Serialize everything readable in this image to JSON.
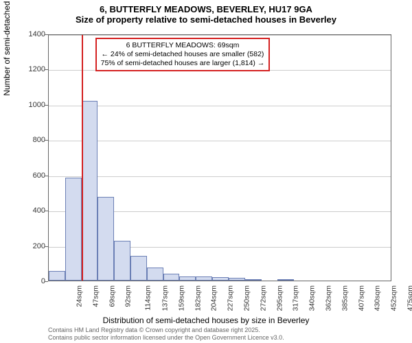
{
  "title": {
    "line1": "6, BUTTERFLY MEADOWS, BEVERLEY, HU17 9GA",
    "line2": "Size of property relative to semi-detached houses in Beverley",
    "fontsize": 13,
    "fontweight": "bold",
    "color": "#000000"
  },
  "chart": {
    "type": "histogram",
    "background_color": "#ffffff",
    "plot_border_color": "#666666",
    "grid_color": "#cccccc",
    "y_axis": {
      "label": "Number of semi-detached properties",
      "min": 0,
      "max": 1400,
      "tick_step": 200,
      "ticks": [
        0,
        200,
        400,
        600,
        800,
        1000,
        1200,
        1400
      ],
      "label_fontsize": 12,
      "tick_fontsize": 11
    },
    "x_axis": {
      "label": "Distribution of semi-detached houses by size in Beverley",
      "ticks": [
        "24sqm",
        "47sqm",
        "69sqm",
        "92sqm",
        "114sqm",
        "137sqm",
        "159sqm",
        "182sqm",
        "204sqm",
        "227sqm",
        "250sqm",
        "272sqm",
        "295sqm",
        "317sqm",
        "340sqm",
        "362sqm",
        "385sqm",
        "407sqm",
        "430sqm",
        "452sqm",
        "475sqm"
      ],
      "label_fontsize": 12,
      "tick_fontsize": 10.5,
      "tick_rotation": -90
    },
    "bars": {
      "fill_color": "#d3dbef",
      "border_color": "#6b7fb5",
      "values": [
        55,
        585,
        1020,
        475,
        225,
        140,
        75,
        40,
        25,
        25,
        20,
        15,
        7,
        0,
        2,
        0,
        0,
        0,
        0,
        0,
        0
      ],
      "width_fraction": 1.0
    },
    "marker": {
      "position_index": 2,
      "color": "#d42020",
      "width": 2
    },
    "annotation": {
      "border_color": "#d42020",
      "background": "#ffffff",
      "fontsize": 10.5,
      "line1": "6 BUTTERFLY MEADOWS: 69sqm",
      "line2": "← 24% of semi-detached houses are smaller (582)",
      "line3": "75% of semi-detached houses are larger (1,814) →"
    }
  },
  "footer": {
    "line1": "Contains HM Land Registry data © Crown copyright and database right 2025.",
    "line2": "Contains public sector information licensed under the Open Government Licence v3.0.",
    "color": "#666666",
    "fontsize": 9
  }
}
